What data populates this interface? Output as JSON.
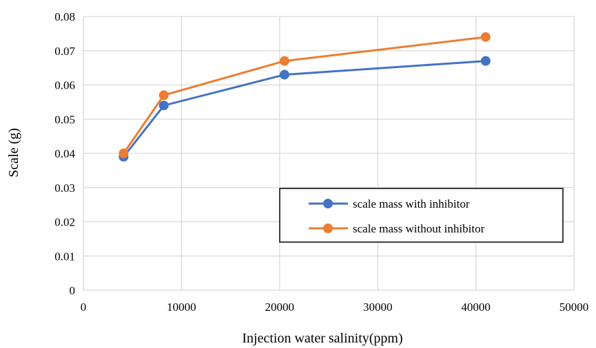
{
  "chart_data": {
    "type": "line",
    "title": "",
    "xlabel": "Injection water salinity(ppm)",
    "ylabel": "Scale (g)",
    "xlim": [
      0,
      50000
    ],
    "ylim": [
      0,
      0.08
    ],
    "x_ticks": [
      "0",
      "10000",
      "20000",
      "30000",
      "40000",
      "50000"
    ],
    "y_ticks": [
      "0",
      "0.01",
      "0.02",
      "0.03",
      "0.04",
      "0.05",
      "0.06",
      "0.07",
      "0.08"
    ],
    "grid": true,
    "legend_position": "bottom-right",
    "series": [
      {
        "name": "scale mass with inhibitor",
        "color": "#4472C4",
        "x": [
          4100,
          8200,
          20500,
          41000
        ],
        "y": [
          0.039,
          0.054,
          0.063,
          0.067
        ]
      },
      {
        "name": "scale mass without inhibitor",
        "color": "#ED7D31",
        "x": [
          4100,
          8200,
          20500,
          41000
        ],
        "y": [
          0.04,
          0.057,
          0.067,
          0.074
        ]
      }
    ]
  }
}
